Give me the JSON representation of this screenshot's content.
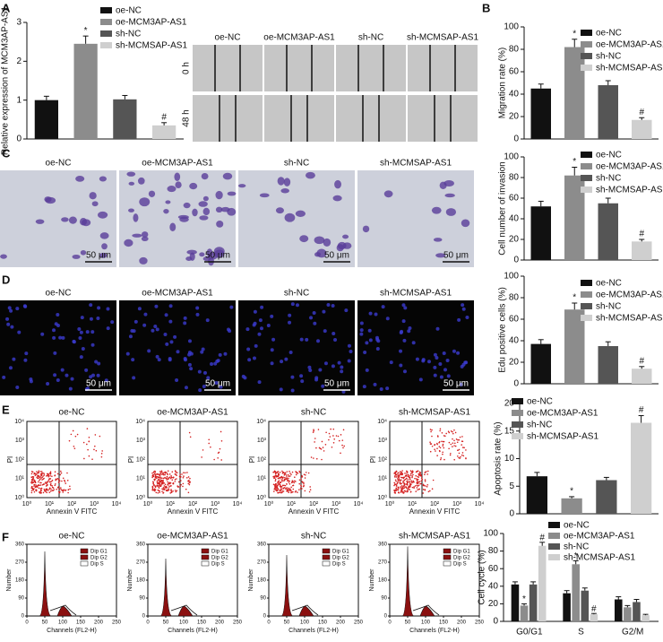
{
  "panels": {
    "letters": [
      "A",
      "B",
      "C",
      "D",
      "E",
      "F"
    ],
    "columns": [
      "oe-NC",
      "oe-MCM3AP-AS1",
      "sh-NC",
      "sh-MCMSAP-AS1"
    ],
    "rows": [
      "0 h",
      "48 h"
    ],
    "scale_bar": "50 μm",
    "flow": {
      "ylabel": "PI",
      "xlabel": "Annexin V FITC",
      "ticks": [
        "10⁰",
        "10¹",
        "10²",
        "10³",
        "10⁴"
      ]
    },
    "histogram": {
      "ylabel": "Number",
      "xlabel": "Channels (FL2-H)",
      "legend": [
        "Dip G1",
        "Dip G2",
        "Dip S"
      ],
      "yticks": [
        0,
        90,
        180,
        270,
        360
      ],
      "xticks": [
        0,
        50,
        100,
        150,
        200,
        250
      ]
    }
  },
  "chart_data": [
    {
      "type": "bar",
      "ylabel": "Relative expression of MCM3AP-AS1",
      "categories": [
        "oe-NC",
        "oe-MCM3AP-AS1",
        "sh-NC",
        "sh-MCMSAP-AS1"
      ],
      "colors": [
        "#111111",
        "#8c8c8c",
        "#555555",
        "#cfcfcf"
      ],
      "values": [
        1.0,
        2.45,
        1.02,
        0.35
      ],
      "errors": [
        0.1,
        0.2,
        0.1,
        0.07
      ],
      "ylim": [
        0,
        3
      ],
      "yticks": [
        0,
        1,
        2,
        3
      ],
      "annotations": [
        {
          "index": 1,
          "text": "*"
        },
        {
          "index": 3,
          "text": "#"
        }
      ]
    },
    {
      "type": "bar",
      "ylabel": "Migration rate (%)",
      "categories": [
        "oe-NC",
        "oe-MCM3AP-AS1",
        "sh-NC",
        "sh-MCMSAP-AS1"
      ],
      "colors": [
        "#111111",
        "#8c8c8c",
        "#555555",
        "#cfcfcf"
      ],
      "values": [
        45,
        82,
        48,
        17
      ],
      "errors": [
        4,
        7,
        4,
        2
      ],
      "ylim": [
        0,
        100
      ],
      "yticks": [
        0,
        20,
        40,
        60,
        80,
        100
      ],
      "annotations": [
        {
          "index": 1,
          "text": "*"
        },
        {
          "index": 3,
          "text": "#"
        }
      ]
    },
    {
      "type": "bar",
      "ylabel": "Cell number of invasion",
      "categories": [
        "oe-NC",
        "oe-MCM3AP-AS1",
        "sh-NC",
        "sh-MCMSAP-AS1"
      ],
      "colors": [
        "#111111",
        "#8c8c8c",
        "#555555",
        "#cfcfcf"
      ],
      "values": [
        52,
        82,
        55,
        18
      ],
      "errors": [
        5,
        8,
        5,
        2
      ],
      "ylim": [
        0,
        100
      ],
      "yticks": [
        0,
        20,
        40,
        60,
        80,
        100
      ],
      "annotations": [
        {
          "index": 1,
          "text": "*"
        },
        {
          "index": 3,
          "text": "#"
        }
      ]
    },
    {
      "type": "bar",
      "ylabel": "Edu positive cells (%)",
      "categories": [
        "oe-NC",
        "oe-MCM3AP-AS1",
        "sh-NC",
        "sh-MCMSAP-AS1"
      ],
      "colors": [
        "#111111",
        "#8c8c8c",
        "#555555",
        "#cfcfcf"
      ],
      "values": [
        37,
        69,
        35,
        14
      ],
      "errors": [
        4,
        6,
        4,
        2
      ],
      "ylim": [
        0,
        100
      ],
      "yticks": [
        0,
        20,
        40,
        60,
        80,
        100
      ],
      "annotations": [
        {
          "index": 1,
          "text": "*"
        },
        {
          "index": 3,
          "text": "#"
        }
      ]
    },
    {
      "type": "bar",
      "ylabel": "Apoptosis rate (%)",
      "categories": [
        "oe-NC",
        "oe-MCM3AP-AS1",
        "sh-NC",
        "sh-MCMSAP-AS1"
      ],
      "colors": [
        "#111111",
        "#8c8c8c",
        "#555555",
        "#cfcfcf"
      ],
      "values": [
        6.8,
        2.8,
        6.1,
        16.5
      ],
      "errors": [
        0.7,
        0.3,
        0.5,
        1.3
      ],
      "ylim": [
        0,
        20
      ],
      "yticks": [
        0,
        5,
        10,
        15,
        20
      ],
      "annotations": [
        {
          "index": 1,
          "text": "*"
        },
        {
          "index": 3,
          "text": "#"
        }
      ]
    },
    {
      "type": "grouped_bar",
      "ylabel": "Cell cycle (%)",
      "categories": [
        "G0/G1",
        "S",
        "G2/M"
      ],
      "ylim": [
        0,
        100
      ],
      "yticks": [
        0,
        20,
        40,
        60,
        80,
        100
      ],
      "series": [
        {
          "name": "oe-NC",
          "color": "#111111",
          "values": [
            42,
            32,
            25
          ],
          "errors": [
            3,
            3,
            3
          ]
        },
        {
          "name": "oe-MCM3AP-AS1",
          "color": "#8c8c8c",
          "values": [
            18,
            65,
            16
          ],
          "errors": [
            2,
            4,
            2
          ]
        },
        {
          "name": "sh-NC",
          "color": "#555555",
          "values": [
            42,
            35,
            22
          ],
          "errors": [
            3,
            3,
            3
          ]
        },
        {
          "name": "sh-MCMSAP-AS1",
          "color": "#cfcfcf",
          "values": [
            86,
            8,
            7
          ],
          "errors": [
            4,
            1,
            1
          ]
        }
      ],
      "annotations": [
        {
          "series": 1,
          "index": 0,
          "text": "*"
        },
        {
          "series": 3,
          "index": 0,
          "text": "#"
        },
        {
          "series": 1,
          "index": 1,
          "text": "*"
        },
        {
          "series": 3,
          "index": 1,
          "text": "#"
        }
      ]
    }
  ]
}
